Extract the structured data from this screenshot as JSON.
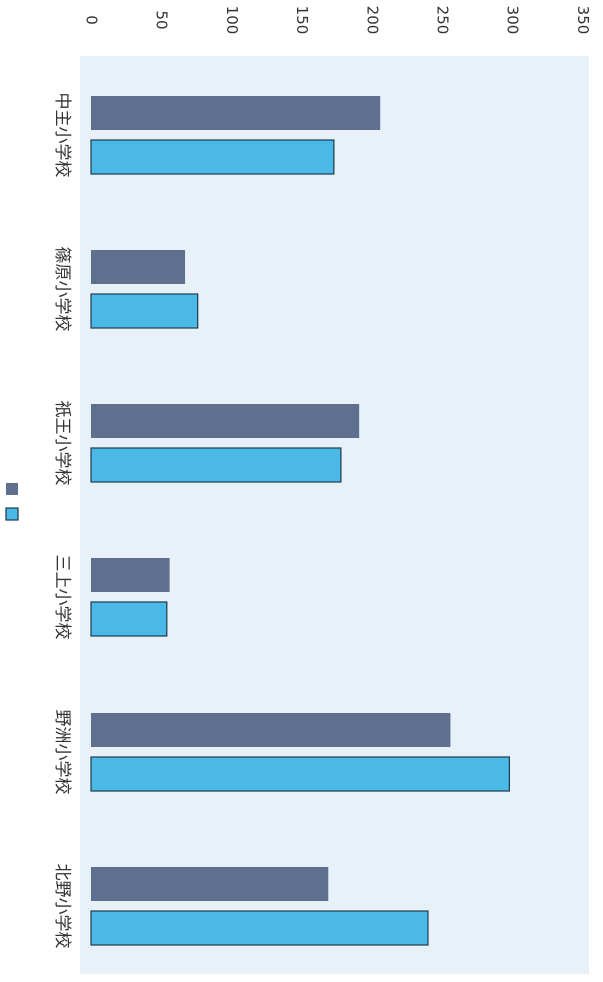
{
  "chart_data": {
    "type": "bar",
    "orientation": "rotated 90° clockwise (vertical bars drawn as horizontal)",
    "title": "",
    "xlabel": "",
    "ylabel": "",
    "ylim": [
      0,
      350
    ],
    "y_ticks": [
      "0",
      "50",
      "100",
      "150",
      "200",
      "250",
      "300",
      "350"
    ],
    "categories": [
      "中主小学校",
      "篠原小学校",
      "祇王小学校",
      "三上小学校",
      "野洲小学校",
      "北野小学校"
    ],
    "series": [
      {
        "color": "#5f6f8f",
        "values": [
          206,
          67,
          191,
          56,
          256,
          169
        ]
      },
      {
        "color": "#4bb9e8",
        "values": [
          173,
          76,
          178,
          54,
          298,
          240
        ]
      }
    ],
    "legend": {
      "placement": "right",
      "entries": [
        "",
        ""
      ]
    },
    "grid": false,
    "plot_background": "#e8f1f8"
  }
}
